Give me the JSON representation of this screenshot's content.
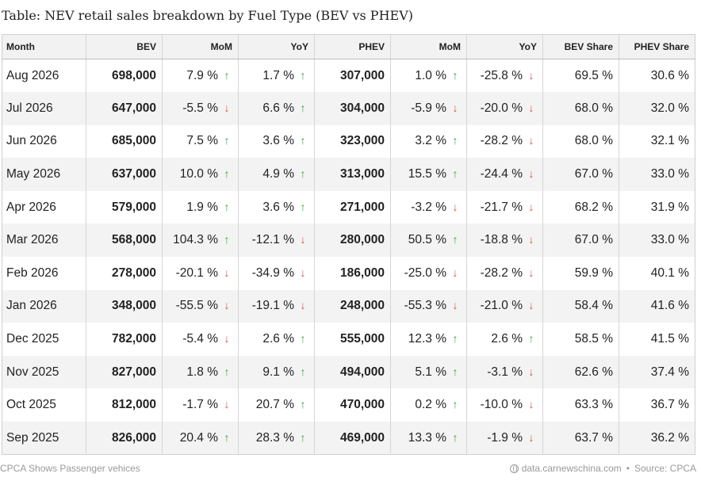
{
  "title": "Table: NEV retail sales breakdown by Fuel Type (BEV vs PHEV)",
  "footer": {
    "left": "CPCA Shows Passenger vehices",
    "site": "data.carnewschina.com",
    "separator": "•",
    "source": "Source: CPCA"
  },
  "colors": {
    "up": "#3aa53a",
    "down": "#d9534f",
    "stripe": "#f3f3f3"
  },
  "chart_data": {
    "type": "table",
    "title": "Table: NEV retail sales breakdown by Fuel Type (BEV vs PHEV)",
    "columns": [
      "Month",
      "BEV",
      "MoM",
      "YoY",
      "PHEV",
      "MoM",
      "YoY",
      "BEV Share",
      "PHEV Share"
    ],
    "rows": [
      {
        "month": "Aug 2026",
        "bev": "698,000",
        "bev_mom": "7.9 %",
        "bev_mom_dir": "up",
        "bev_yoy": "1.7 %",
        "bev_yoy_dir": "up",
        "phev": "307,000",
        "phev_mom": "1.0 %",
        "phev_mom_dir": "up",
        "phev_yoy": "-25.8 %",
        "phev_yoy_dir": "down",
        "bev_share": "69.5 %",
        "phev_share": "30.6 %"
      },
      {
        "month": "Jul 2026",
        "bev": "647,000",
        "bev_mom": "-5.5 %",
        "bev_mom_dir": "down",
        "bev_yoy": "6.6 %",
        "bev_yoy_dir": "up",
        "phev": "304,000",
        "phev_mom": "-5.9 %",
        "phev_mom_dir": "down",
        "phev_yoy": "-20.0 %",
        "phev_yoy_dir": "down",
        "bev_share": "68.0 %",
        "phev_share": "32.0 %"
      },
      {
        "month": "Jun 2026",
        "bev": "685,000",
        "bev_mom": "7.5 %",
        "bev_mom_dir": "up",
        "bev_yoy": "3.6 %",
        "bev_yoy_dir": "up",
        "phev": "323,000",
        "phev_mom": "3.2 %",
        "phev_mom_dir": "up",
        "phev_yoy": "-28.2 %",
        "phev_yoy_dir": "down",
        "bev_share": "68.0 %",
        "phev_share": "32.1 %"
      },
      {
        "month": "May 2026",
        "bev": "637,000",
        "bev_mom": "10.0 %",
        "bev_mom_dir": "up",
        "bev_yoy": "4.9 %",
        "bev_yoy_dir": "up",
        "phev": "313,000",
        "phev_mom": "15.5 %",
        "phev_mom_dir": "up",
        "phev_yoy": "-24.4 %",
        "phev_yoy_dir": "down",
        "bev_share": "67.0 %",
        "phev_share": "33.0 %"
      },
      {
        "month": "Apr 2026",
        "bev": "579,000",
        "bev_mom": "1.9 %",
        "bev_mom_dir": "up",
        "bev_yoy": "3.6 %",
        "bev_yoy_dir": "up",
        "phev": "271,000",
        "phev_mom": "-3.2 %",
        "phev_mom_dir": "down",
        "phev_yoy": "-21.7 %",
        "phev_yoy_dir": "down",
        "bev_share": "68.2 %",
        "phev_share": "31.9 %"
      },
      {
        "month": "Mar 2026",
        "bev": "568,000",
        "bev_mom": "104.3 %",
        "bev_mom_dir": "up",
        "bev_yoy": "-12.1 %",
        "bev_yoy_dir": "down",
        "phev": "280,000",
        "phev_mom": "50.5 %",
        "phev_mom_dir": "up",
        "phev_yoy": "-18.8 %",
        "phev_yoy_dir": "down",
        "bev_share": "67.0 %",
        "phev_share": "33.0 %"
      },
      {
        "month": "Feb 2026",
        "bev": "278,000",
        "bev_mom": "-20.1 %",
        "bev_mom_dir": "down",
        "bev_yoy": "-34.9 %",
        "bev_yoy_dir": "down",
        "phev": "186,000",
        "phev_mom": "-25.0 %",
        "phev_mom_dir": "down",
        "phev_yoy": "-28.2 %",
        "phev_yoy_dir": "down",
        "bev_share": "59.9 %",
        "phev_share": "40.1 %"
      },
      {
        "month": "Jan 2026",
        "bev": "348,000",
        "bev_mom": "-55.5 %",
        "bev_mom_dir": "down",
        "bev_yoy": "-19.1 %",
        "bev_yoy_dir": "down",
        "phev": "248,000",
        "phev_mom": "-55.3 %",
        "phev_mom_dir": "down",
        "phev_yoy": "-21.0 %",
        "phev_yoy_dir": "down",
        "bev_share": "58.4 %",
        "phev_share": "41.6 %"
      },
      {
        "month": "Dec 2025",
        "bev": "782,000",
        "bev_mom": "-5.4 %",
        "bev_mom_dir": "down",
        "bev_yoy": "2.6 %",
        "bev_yoy_dir": "up",
        "phev": "555,000",
        "phev_mom": "12.3 %",
        "phev_mom_dir": "up",
        "phev_yoy": "2.6 %",
        "phev_yoy_dir": "up",
        "bev_share": "58.5 %",
        "phev_share": "41.5 %"
      },
      {
        "month": "Nov 2025",
        "bev": "827,000",
        "bev_mom": "1.8 %",
        "bev_mom_dir": "up",
        "bev_yoy": "9.1 %",
        "bev_yoy_dir": "up",
        "phev": "494,000",
        "phev_mom": "5.1 %",
        "phev_mom_dir": "up",
        "phev_yoy": "-3.1 %",
        "phev_yoy_dir": "down",
        "bev_share": "62.6 %",
        "phev_share": "37.4 %"
      },
      {
        "month": "Oct 2025",
        "bev": "812,000",
        "bev_mom": "-1.7 %",
        "bev_mom_dir": "down",
        "bev_yoy": "20.7 %",
        "bev_yoy_dir": "up",
        "phev": "470,000",
        "phev_mom": "0.2 %",
        "phev_mom_dir": "up",
        "phev_yoy": "-10.0 %",
        "phev_yoy_dir": "down",
        "bev_share": "63.3 %",
        "phev_share": "36.7 %"
      },
      {
        "month": "Sep 2025",
        "bev": "826,000",
        "bev_mom": "20.4 %",
        "bev_mom_dir": "up",
        "bev_yoy": "28.3 %",
        "bev_yoy_dir": "up",
        "phev": "469,000",
        "phev_mom": "13.3 %",
        "phev_mom_dir": "up",
        "phev_yoy": "-1.9 %",
        "phev_yoy_dir": "down",
        "bev_share": "63.7 %",
        "phev_share": "36.2 %"
      }
    ]
  }
}
